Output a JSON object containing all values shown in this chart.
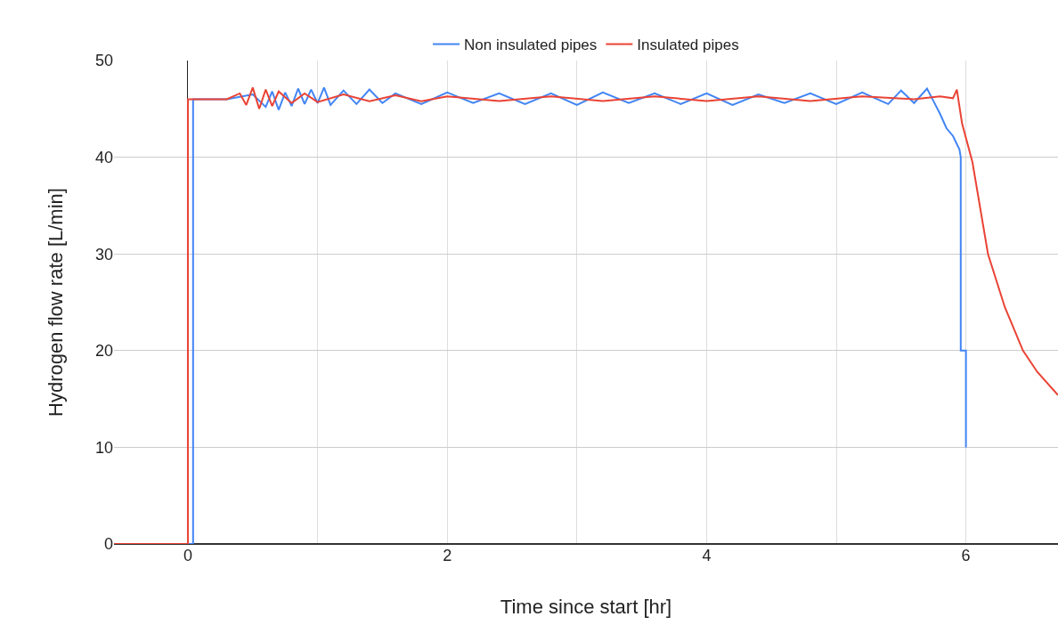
{
  "chart_data": {
    "type": "line",
    "xlabel": "Time since start [hr]",
    "ylabel": "Hydrogen flow rate [L/min]",
    "xlim": [
      -0.57,
      6.71
    ],
    "ylim": [
      0,
      50
    ],
    "xticks": [
      0,
      {
        "value": 1,
        "label": null
      },
      2,
      {
        "value": 3,
        "label": null
      },
      4,
      {
        "value": 5,
        "label": null
      },
      6
    ],
    "yticks": [
      0,
      10,
      20,
      30,
      40,
      50
    ],
    "grid": true,
    "legend": "top",
    "marker": "none",
    "line_style": "solid",
    "series": [
      {
        "name": "Non insulated pipes",
        "color": "#4285f4",
        "x": [
          -0.57,
          0.04,
          0.04,
          0.3,
          0.5,
          0.6,
          0.65,
          0.7,
          0.75,
          0.8,
          0.85,
          0.9,
          0.95,
          1.0,
          1.05,
          1.1,
          1.2,
          1.3,
          1.4,
          1.5,
          1.6,
          1.8,
          2.0,
          2.2,
          2.4,
          2.6,
          2.8,
          3.0,
          3.2,
          3.4,
          3.6,
          3.8,
          4.0,
          4.2,
          4.4,
          4.6,
          4.8,
          5.0,
          5.2,
          5.4,
          5.5,
          5.6,
          5.7,
          5.75,
          5.8,
          5.85,
          5.9,
          5.95,
          5.96,
          5.96,
          6.0,
          6.0
        ],
        "values": [
          0,
          0,
          46,
          46,
          46.5,
          45.2,
          46.8,
          44.9,
          46.7,
          45.3,
          47.1,
          45.5,
          47.0,
          45.6,
          47.2,
          45.4,
          46.9,
          45.5,
          47.0,
          45.6,
          46.6,
          45.5,
          46.7,
          45.6,
          46.6,
          45.5,
          46.6,
          45.4,
          46.7,
          45.6,
          46.6,
          45.5,
          46.6,
          45.4,
          46.5,
          45.6,
          46.6,
          45.5,
          46.7,
          45.5,
          46.9,
          45.6,
          47.1,
          45.8,
          44.5,
          43.0,
          42.2,
          40.8,
          40.0,
          20,
          20,
          10
        ]
      },
      {
        "name": "Insulated pipes",
        "color": "#ea4335",
        "x": [
          -0.57,
          0.0,
          0.0,
          0.3,
          0.4,
          0.45,
          0.5,
          0.55,
          0.6,
          0.65,
          0.7,
          0.8,
          0.9,
          1.0,
          1.2,
          1.4,
          1.6,
          1.8,
          2.0,
          2.4,
          2.8,
          3.2,
          3.6,
          4.0,
          4.4,
          4.8,
          5.2,
          5.6,
          5.8,
          5.9,
          5.93,
          5.97,
          6.05,
          6.17,
          6.3,
          6.44,
          6.55,
          6.71
        ],
        "values": [
          0,
          0,
          46,
          46,
          46.6,
          45.4,
          47.2,
          45.0,
          47.0,
          45.3,
          46.8,
          45.6,
          46.6,
          45.7,
          46.5,
          45.8,
          46.4,
          45.8,
          46.3,
          45.8,
          46.3,
          45.8,
          46.3,
          45.8,
          46.3,
          45.8,
          46.3,
          46.0,
          46.3,
          46.1,
          47.0,
          43.5,
          39.5,
          30,
          24.5,
          20,
          17.8,
          15.4
        ]
      }
    ]
  }
}
